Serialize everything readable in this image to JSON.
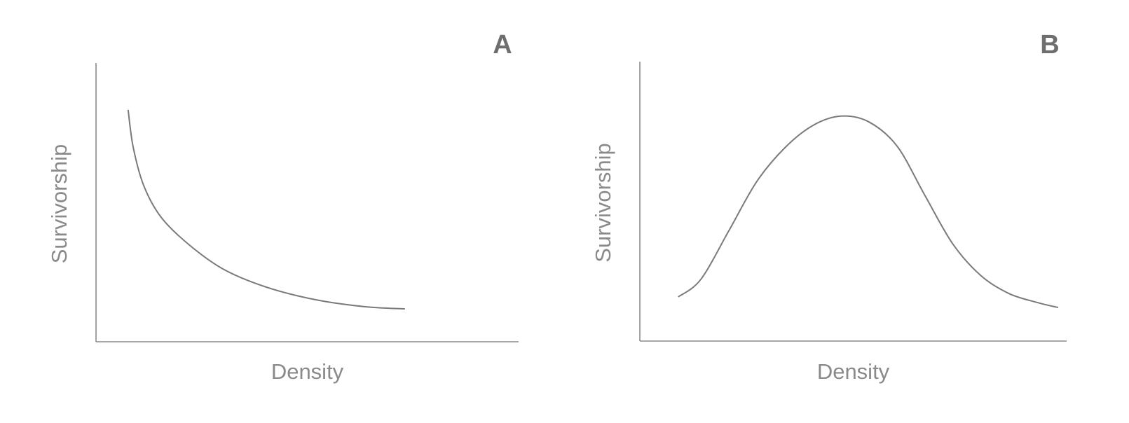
{
  "chart_data": [
    {
      "type": "line",
      "title": "A",
      "x_label": "Density",
      "y_label": "Survivorship",
      "xlim": [
        0,
        100
      ],
      "ylim": [
        0,
        100
      ],
      "color": "#7a7a7a",
      "x": [
        7.6,
        8.8,
        11.3,
        15.4,
        22.1,
        30.3,
        40.3,
        51.9,
        63.5,
        73.1
      ],
      "values": [
        83.2,
        69.8,
        56.0,
        44.7,
        34.7,
        25.9,
        19.6,
        15.1,
        12.6,
        11.8
      ]
    },
    {
      "type": "line",
      "title": "B",
      "x_label": "Density",
      "y_label": "Survivorship",
      "xlim": [
        0,
        100
      ],
      "ylim": [
        0,
        100
      ],
      "color": "#7a7a7a",
      "x": [
        9.0,
        14.3,
        20.9,
        27.4,
        34.0,
        40.6,
        47.1,
        53.7,
        60.3,
        66.8,
        73.4,
        80.0,
        86.5,
        93.1,
        98.0
      ],
      "values": [
        15.8,
        22.1,
        39.6,
        57.1,
        69.2,
        77.2,
        80.5,
        78.4,
        69.7,
        52.1,
        34.6,
        23.3,
        17.0,
        13.8,
        12.0
      ]
    }
  ]
}
